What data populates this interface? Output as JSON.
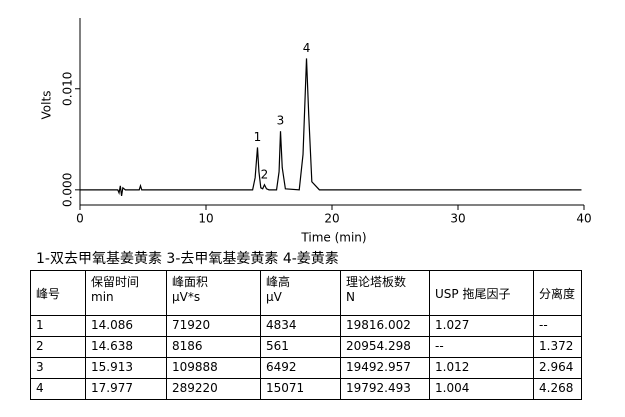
{
  "chart_data": {
    "type": "line",
    "xlabel": "Time (min)",
    "ylabel": "Volts",
    "x": [
      0,
      3.0,
      3.1,
      3.2,
      3.3,
      3.4,
      3.6,
      4.7,
      4.8,
      4.9,
      5.2,
      13.7,
      13.9,
      14.086,
      14.2,
      14.35,
      14.5,
      14.638,
      14.8,
      15.0,
      15.6,
      15.8,
      15.913,
      16.05,
      16.3,
      17.4,
      17.7,
      17.977,
      18.15,
      18.4,
      19.0,
      30.0,
      39.8
    ],
    "series": [
      {
        "name": "signal",
        "color": "#000000",
        "values": [
          0,
          0,
          -0.0003,
          0.0004,
          -0.0006,
          0.0002,
          0,
          0,
          0.0004,
          0,
          0,
          0,
          0.0012,
          0.0042,
          0.0018,
          0.0002,
          0.0001,
          0.0005,
          0.0001,
          0,
          0,
          0.0018,
          0.0058,
          0.0022,
          0.0001,
          0,
          0.0035,
          0.013,
          0.0075,
          0.0008,
          0,
          0,
          0
        ]
      }
    ],
    "annotations": [
      {
        "text": "1",
        "x": 14.086
      },
      {
        "text": "2",
        "x": 14.638
      },
      {
        "text": "3",
        "x": 15.913
      },
      {
        "text": "4",
        "x": 17.977
      }
    ],
    "xlim": [
      0,
      40
    ],
    "xticks": [
      0,
      10,
      20,
      30,
      40
    ],
    "ylim": [
      -0.0015,
      0.017
    ],
    "yticks": [
      {
        "value": 0,
        "label": "0.000"
      },
      {
        "value": 0.01,
        "label": "0.010"
      }
    ]
  },
  "caption": "1-双去甲氧基姜黄素 3-去甲氧基姜黄素 4-姜黄素",
  "table": {
    "header": [
      [
        "峰号"
      ],
      [
        "保留时间",
        "min"
      ],
      [
        "峰面积",
        "μV*s"
      ],
      [
        "峰高",
        "μV"
      ],
      [
        "理论塔板数",
        "N"
      ],
      [
        "USP 拖尾因子"
      ],
      [
        "分离度"
      ]
    ],
    "rows": [
      [
        "1",
        "14.086",
        "71920",
        "4834",
        "19816.002",
        "1.027",
        "--"
      ],
      [
        "2",
        "14.638",
        "8186",
        "561",
        "20954.298",
        "--",
        "1.372"
      ],
      [
        "3",
        "15.913",
        "109888",
        "6492",
        "19492.957",
        "1.012",
        "2.964"
      ],
      [
        "4",
        "17.977",
        "289220",
        "15071",
        "19792.493",
        "1.004",
        "4.268"
      ]
    ]
  }
}
